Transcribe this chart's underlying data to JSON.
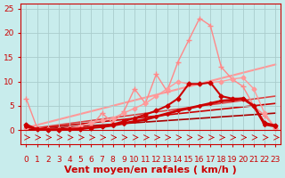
{
  "title": "",
  "xlabel": "Vent moyen/en rafales ( km/h )",
  "ylabel": "",
  "xlim": [
    -0.5,
    23.5
  ],
  "ylim": [
    0,
    26
  ],
  "yticks": [
    0,
    5,
    10,
    15,
    20,
    25
  ],
  "xticks": [
    0,
    1,
    2,
    3,
    4,
    5,
    6,
    7,
    8,
    9,
    10,
    11,
    12,
    13,
    14,
    15,
    16,
    17,
    18,
    19,
    20,
    21,
    22,
    23
  ],
  "bg_color": "#c8ecec",
  "grid_color": "#aacccc",
  "line_pink_spiky": {
    "x": [
      0,
      1,
      2,
      3,
      4,
      5,
      6,
      7,
      8,
      9,
      10,
      11,
      12,
      13,
      14,
      15,
      16,
      17,
      18,
      19,
      20,
      21,
      22,
      23
    ],
    "y": [
      6.5,
      0.5,
      0.2,
      0.1,
      0.5,
      0.3,
      0.8,
      3.5,
      1.5,
      3.8,
      8.5,
      5.5,
      11.5,
      8.0,
      14.0,
      18.5,
      23.0,
      21.5,
      13.0,
      10.5,
      9.0,
      5.0,
      3.0,
      0.5
    ],
    "color": "#ff8888",
    "lw": 1.0,
    "marker": "+",
    "ms": 5.0
  },
  "line_pink_smooth": {
    "x": [
      0,
      1,
      2,
      3,
      4,
      5,
      6,
      7,
      8,
      9,
      10,
      11,
      12,
      13,
      14,
      15,
      16,
      17,
      18,
      19,
      20,
      21,
      22,
      23
    ],
    "y": [
      0.5,
      0.3,
      0.2,
      0.2,
      0.4,
      0.8,
      1.5,
      2.0,
      2.5,
      3.5,
      4.5,
      5.5,
      7.0,
      8.5,
      10.0,
      9.5,
      9.5,
      9.8,
      10.0,
      10.5,
      10.8,
      8.5,
      3.5,
      0.5
    ],
    "color": "#ff9999",
    "lw": 1.0,
    "marker": "D",
    "ms": 2.5
  },
  "line_red_main": {
    "x": [
      0,
      1,
      2,
      3,
      4,
      5,
      6,
      7,
      8,
      9,
      10,
      11,
      12,
      13,
      14,
      15,
      16,
      17,
      18,
      19,
      20,
      21,
      22,
      23
    ],
    "y": [
      1.2,
      0.2,
      0.1,
      0.1,
      0.2,
      0.3,
      0.5,
      0.8,
      1.2,
      1.8,
      2.5,
      3.2,
      4.0,
      5.0,
      6.5,
      9.5,
      9.5,
      9.8,
      7.0,
      6.5,
      6.5,
      5.0,
      1.5,
      1.0
    ],
    "color": "#cc0000",
    "lw": 1.5,
    "marker": "D",
    "ms": 2.5
  },
  "line_red_lower": {
    "x": [
      0,
      1,
      2,
      3,
      4,
      5,
      6,
      7,
      8,
      9,
      10,
      11,
      12,
      13,
      14,
      15,
      16,
      17,
      18,
      19,
      20,
      21,
      22,
      23
    ],
    "y": [
      0.8,
      0.2,
      0.1,
      0.1,
      0.2,
      0.3,
      0.5,
      0.7,
      1.0,
      1.4,
      1.8,
      2.2,
      2.8,
      3.4,
      4.0,
      4.5,
      5.0,
      5.5,
      6.0,
      6.2,
      6.5,
      5.0,
      1.2,
      0.8
    ],
    "color": "#cc0000",
    "lw": 2.0,
    "marker": "D",
    "ms": 2.0
  },
  "trend_pink": {
    "x": [
      0,
      23
    ],
    "y": [
      0.5,
      13.5
    ],
    "color": "#ff9999",
    "lw": 1.5
  },
  "trend_red1": {
    "x": [
      0,
      23
    ],
    "y": [
      0.2,
      7.0
    ],
    "color": "#dd4444",
    "lw": 1.2
  },
  "trend_red2": {
    "x": [
      0,
      23
    ],
    "y": [
      0.1,
      5.5
    ],
    "color": "#cc0000",
    "lw": 1.2
  },
  "trend_darkred": {
    "x": [
      0,
      23
    ],
    "y": [
      0.0,
      3.5
    ],
    "color": "#aa0000",
    "lw": 1.2
  },
  "arrows_color": "#cc0000",
  "xlabel_color": "#cc0000",
  "xlabel_fontsize": 8,
  "tick_fontsize": 6.5,
  "tick_color": "#cc0000"
}
